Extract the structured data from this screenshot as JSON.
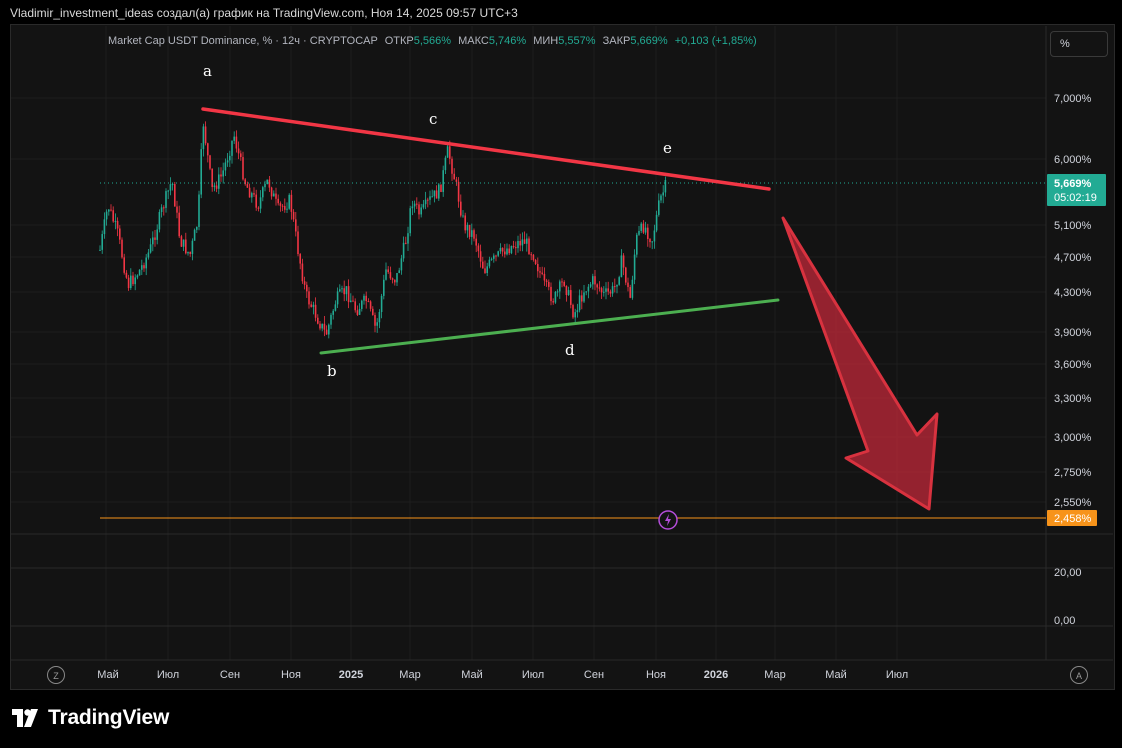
{
  "header": {
    "author_line": "Vladimir_investment_ideas создал(а) график на TradingView.com, Ноя 14, 2025 09:57 UTC+3"
  },
  "legend": {
    "symbol": "Market Cap USDT Dominance, % · 12ч · CRYPTOCAP",
    "open_label": "ОТКР",
    "open_value": "5,566%",
    "high_label": "МАКС",
    "high_value": "5,746%",
    "low_label": "МИН",
    "low_value": "5,557%",
    "close_label": "ЗАКР",
    "close_value": "5,669%",
    "change": "+0,103 (+1,85%)"
  },
  "scale_button": "%",
  "price_axis": [
    "7,000%",
    "6,000%",
    "5,100%",
    "4,700%",
    "4,300%",
    "3,900%",
    "3,600%",
    "3,300%",
    "3,000%",
    "2,750%",
    "2,550%"
  ],
  "indicator_axis": [
    "20,00",
    "0,00"
  ],
  "last_price": {
    "value": "5,669%",
    "countdown": "05:02:19"
  },
  "alert_level": {
    "value": "2,458%"
  },
  "time_axis": [
    "Май",
    "Июл",
    "Сен",
    "Ноя",
    "2025",
    "Мар",
    "Май",
    "Июл",
    "Сен",
    "Ноя",
    "2026",
    "Мар",
    "Май",
    "Июл"
  ],
  "time_axis_buttons": {
    "left": "Z",
    "right": "A"
  },
  "wave_labels": [
    "a",
    "b",
    "c",
    "d",
    "e"
  ],
  "brand": "TradingView",
  "colors": {
    "up": "#22ab94",
    "down": "#f23645",
    "resistance": "#f23645",
    "support": "#4caf50",
    "alert": "#f7931a",
    "accent_arrow": "#c0283a"
  },
  "chart_data": {
    "type": "candlestick",
    "series": [
      {
        "name": "Market Cap USDT Dominance, %"
      }
    ],
    "close_last": 5.669,
    "y_scale": "log",
    "wave_points": [
      {
        "label": "a",
        "value": 6.7
      },
      {
        "label": "b",
        "value": 3.75
      },
      {
        "label": "c",
        "value": 6.25
      },
      {
        "label": "d",
        "value": 4.0
      },
      {
        "label": "e",
        "value": 5.75
      }
    ],
    "alert_level": 2.458
  }
}
